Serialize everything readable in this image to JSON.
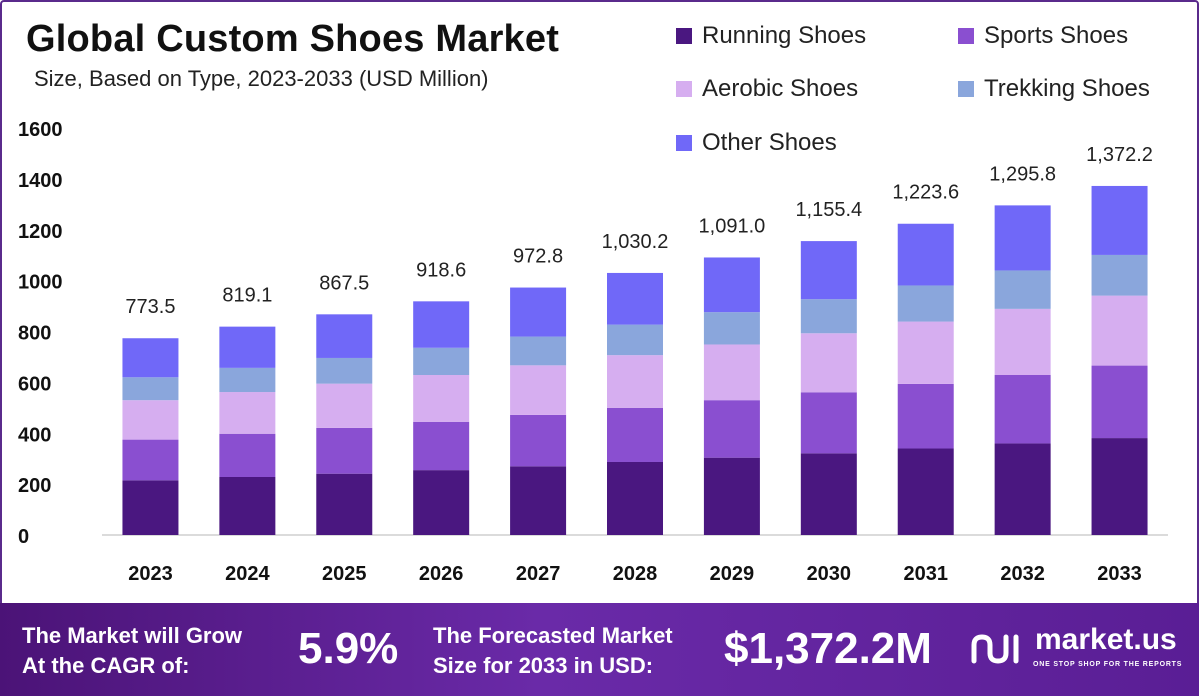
{
  "chart_data": {
    "type": "bar",
    "stacked": true,
    "title": "Global Custom Shoes Market",
    "subtitle": "Size, Based on Type, 2023-2033 (USD Million)",
    "categories": [
      "2023",
      "2024",
      "2025",
      "2026",
      "2027",
      "2028",
      "2029",
      "2030",
      "2031",
      "2032",
      "2033"
    ],
    "totals": [
      "773.5",
      "819.1",
      "867.5",
      "918.6",
      "972.8",
      "1,030.2",
      "1,091.0",
      "1,155.4",
      "1,223.6",
      "1,295.8",
      "1,372.2"
    ],
    "series": [
      {
        "name": "Running Shoes",
        "color": "#4a1780",
        "values": [
          215,
          228,
          241,
          255,
          270,
          287,
          304,
          321,
          340,
          360,
          381
        ]
      },
      {
        "name": "Sports Shoes",
        "color": "#8a4fd0",
        "values": [
          160,
          170,
          180,
          190,
          202,
          213,
          226,
          240,
          254,
          269,
          285
        ]
      },
      {
        "name": "Aerobic Shoes",
        "color": "#d6aef0",
        "values": [
          155,
          164,
          174,
          184,
          195,
          207,
          219,
          232,
          245,
          260,
          275
        ]
      },
      {
        "name": "Trekking Shoes",
        "color": "#8aa6dc",
        "values": [
          90,
          95,
          101,
          107,
          113,
          120,
          127,
          134,
          142,
          151,
          160
        ]
      },
      {
        "name": "Other Shoes",
        "color": "#7068f8",
        "values": [
          153.5,
          162.1,
          171.5,
          182.6,
          192.8,
          203.2,
          215.0,
          228.4,
          242.6,
          255.8,
          271.2
        ]
      }
    ],
    "y_ticks": [
      "0",
      "200",
      "400",
      "600",
      "800",
      "1000",
      "1200",
      "1400",
      "1600"
    ],
    "ylim": [
      0,
      1600
    ],
    "legend_position": "top-right"
  },
  "footer": {
    "cagr_label_line1": "The Market will Grow",
    "cagr_label_line2": "At the CAGR of:",
    "cagr_value": "5.9%",
    "forecast_label_line1": "The Forecasted Market",
    "forecast_label_line2": "Size for 2033 in USD:",
    "forecast_value": "$1,372.2M",
    "brand": "market.us",
    "tagline": "ONE STOP SHOP FOR THE REPORTS"
  },
  "colors": {
    "footer_bg": "#5a1e95",
    "axis": "#cccccc"
  }
}
